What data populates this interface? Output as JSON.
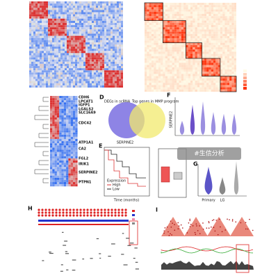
{
  "genes": [
    "CDH6",
    "LPCAT1",
    "IGFP1",
    "LGALS2",
    "SLC16A9",
    "CDC42",
    "ATP1A1",
    "CA2",
    "FGL2",
    "IRIK1",
    "SERPINE2",
    "PTPN1"
  ],
  "panels": {
    "d": {
      "letter": "D",
      "label_left": "DEGs in scRNA",
      "label_right": "Top genes in MMP program"
    },
    "e": {
      "letter": "E",
      "gene": "SERPINE2",
      "legend_title": "Expression",
      "legend_high": "High",
      "legend_low": "Low",
      "x_label": "Time (months)"
    },
    "f": {
      "letter": "F",
      "y_label": "SERPINE2"
    },
    "g": {
      "letter": "G",
      "categories": [
        "Primary",
        "LG"
      ]
    },
    "h": {
      "letter": "H"
    },
    "i": {
      "letter": "I"
    }
  },
  "watermark": "#生信分析"
}
